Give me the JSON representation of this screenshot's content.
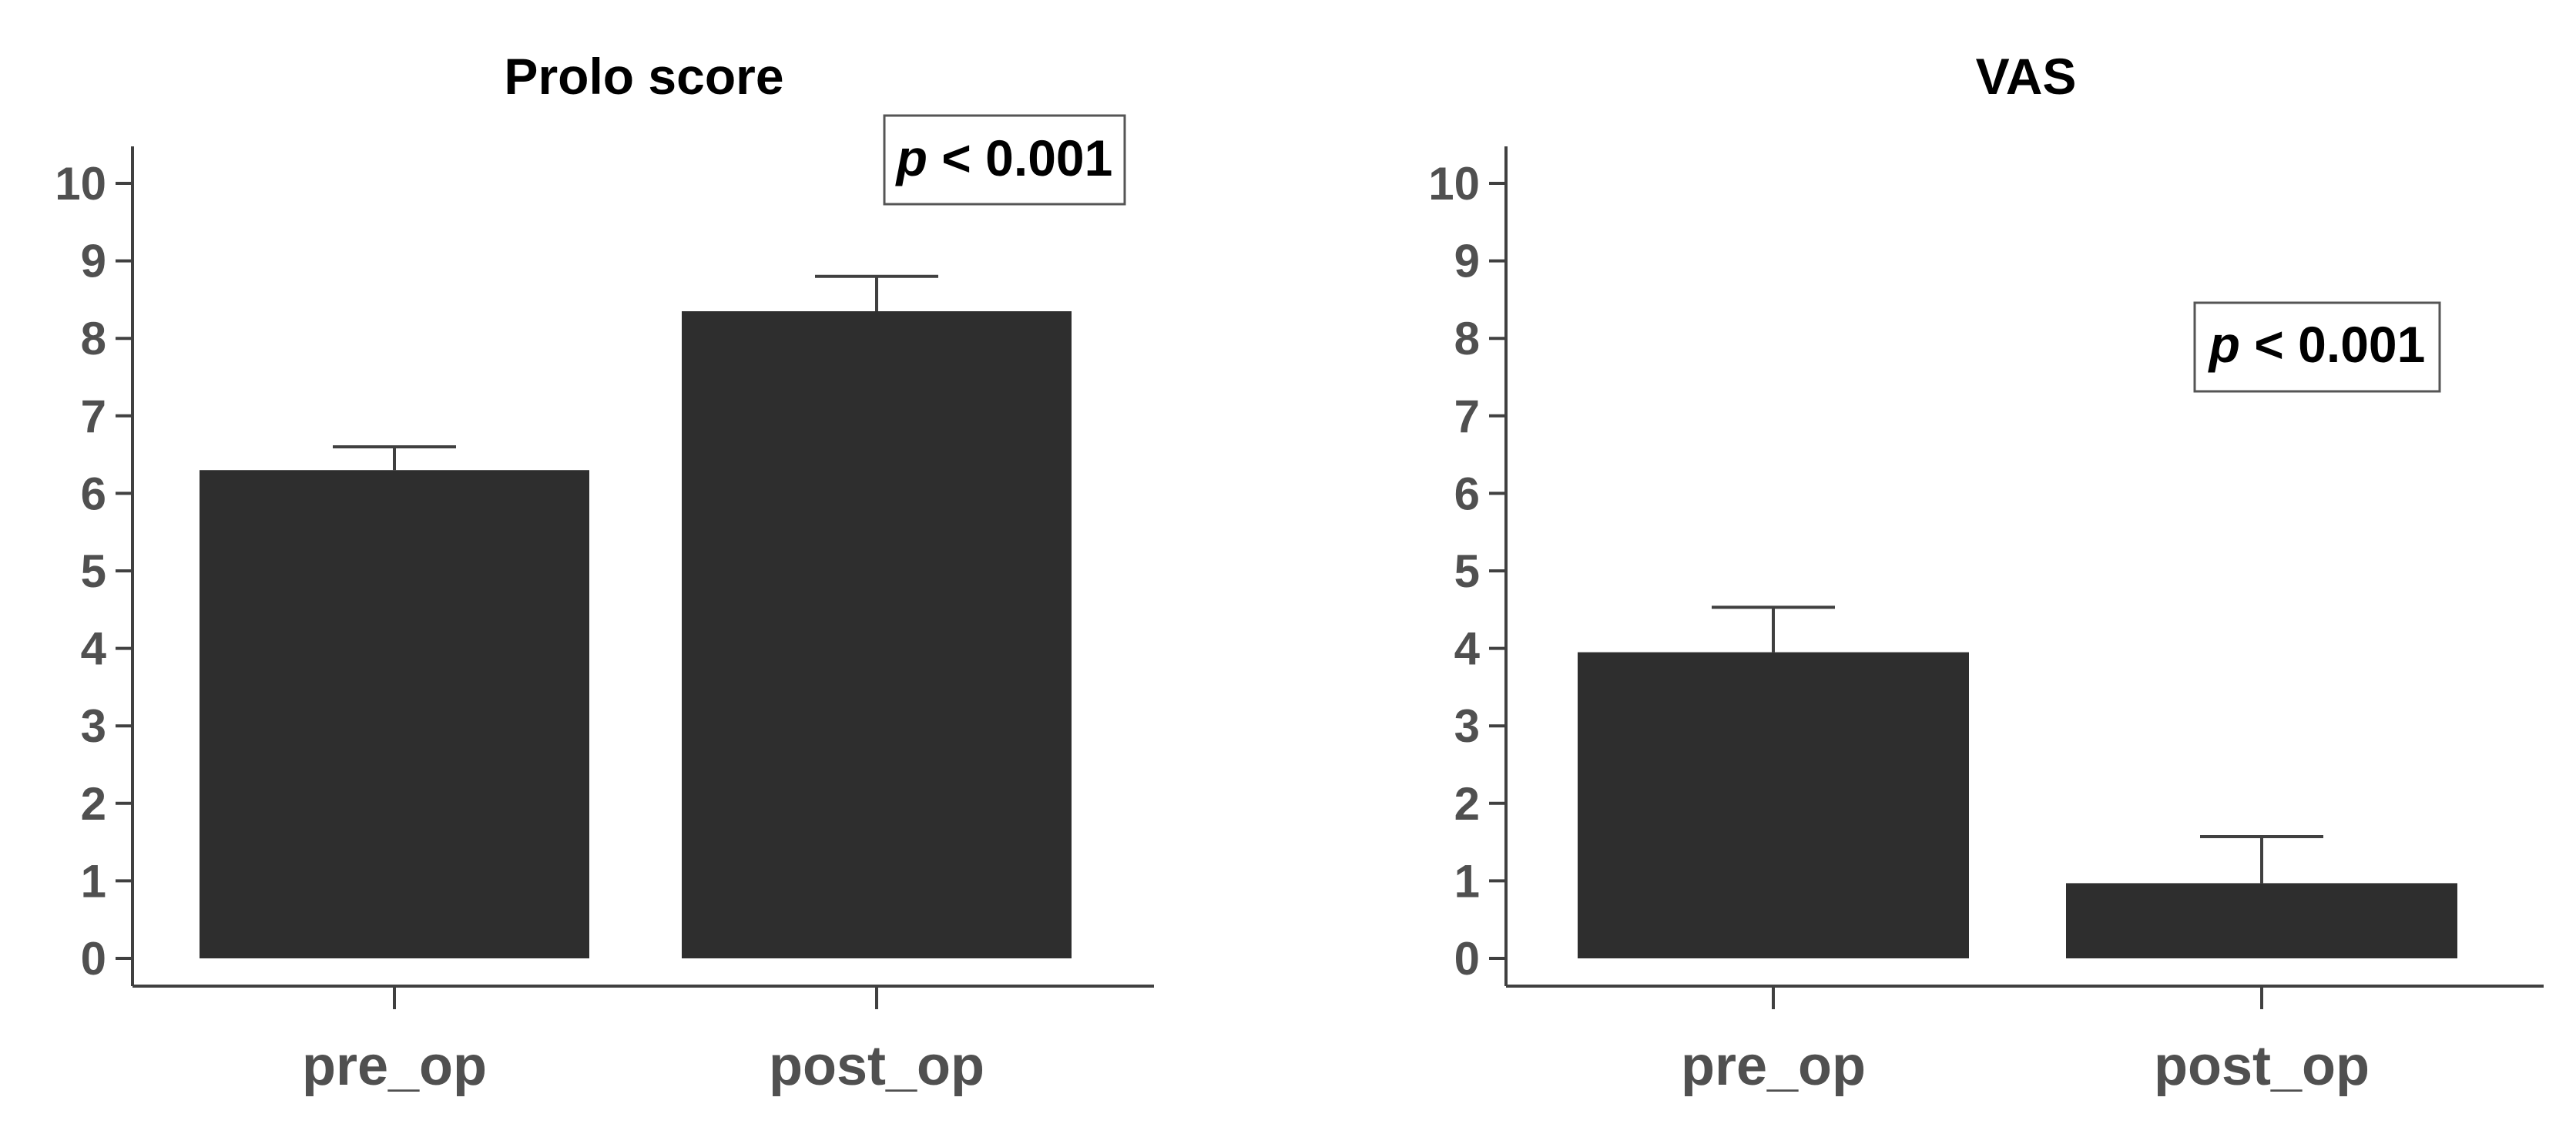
{
  "chart_data": [
    {
      "type": "bar",
      "title": "Prolo score",
      "categories": [
        "pre_op",
        "post_op"
      ],
      "values": [
        6.3,
        8.35
      ],
      "error": [
        0.3,
        0.45
      ],
      "ylim": [
        0,
        10
      ],
      "yticks": [
        "0",
        "1",
        "2",
        "3",
        "4",
        "5",
        "6",
        "7",
        "8",
        "9",
        "10"
      ],
      "annotation": {
        "p": "p",
        "rest": " < 0.001"
      },
      "bar_color": "#2e2e2e"
    },
    {
      "type": "bar",
      "title": "VAS",
      "categories": [
        "pre_op",
        "post_op"
      ],
      "values": [
        3.95,
        0.97
      ],
      "error": [
        0.58,
        0.6
      ],
      "ylim": [
        0,
        10
      ],
      "yticks": [
        "0",
        "1",
        "2",
        "3",
        "4",
        "5",
        "6",
        "7",
        "8",
        "9",
        "10"
      ],
      "annotation": {
        "p": "p",
        "rest": " < 0.001"
      },
      "bar_color": "#2e2e2e"
    }
  ]
}
